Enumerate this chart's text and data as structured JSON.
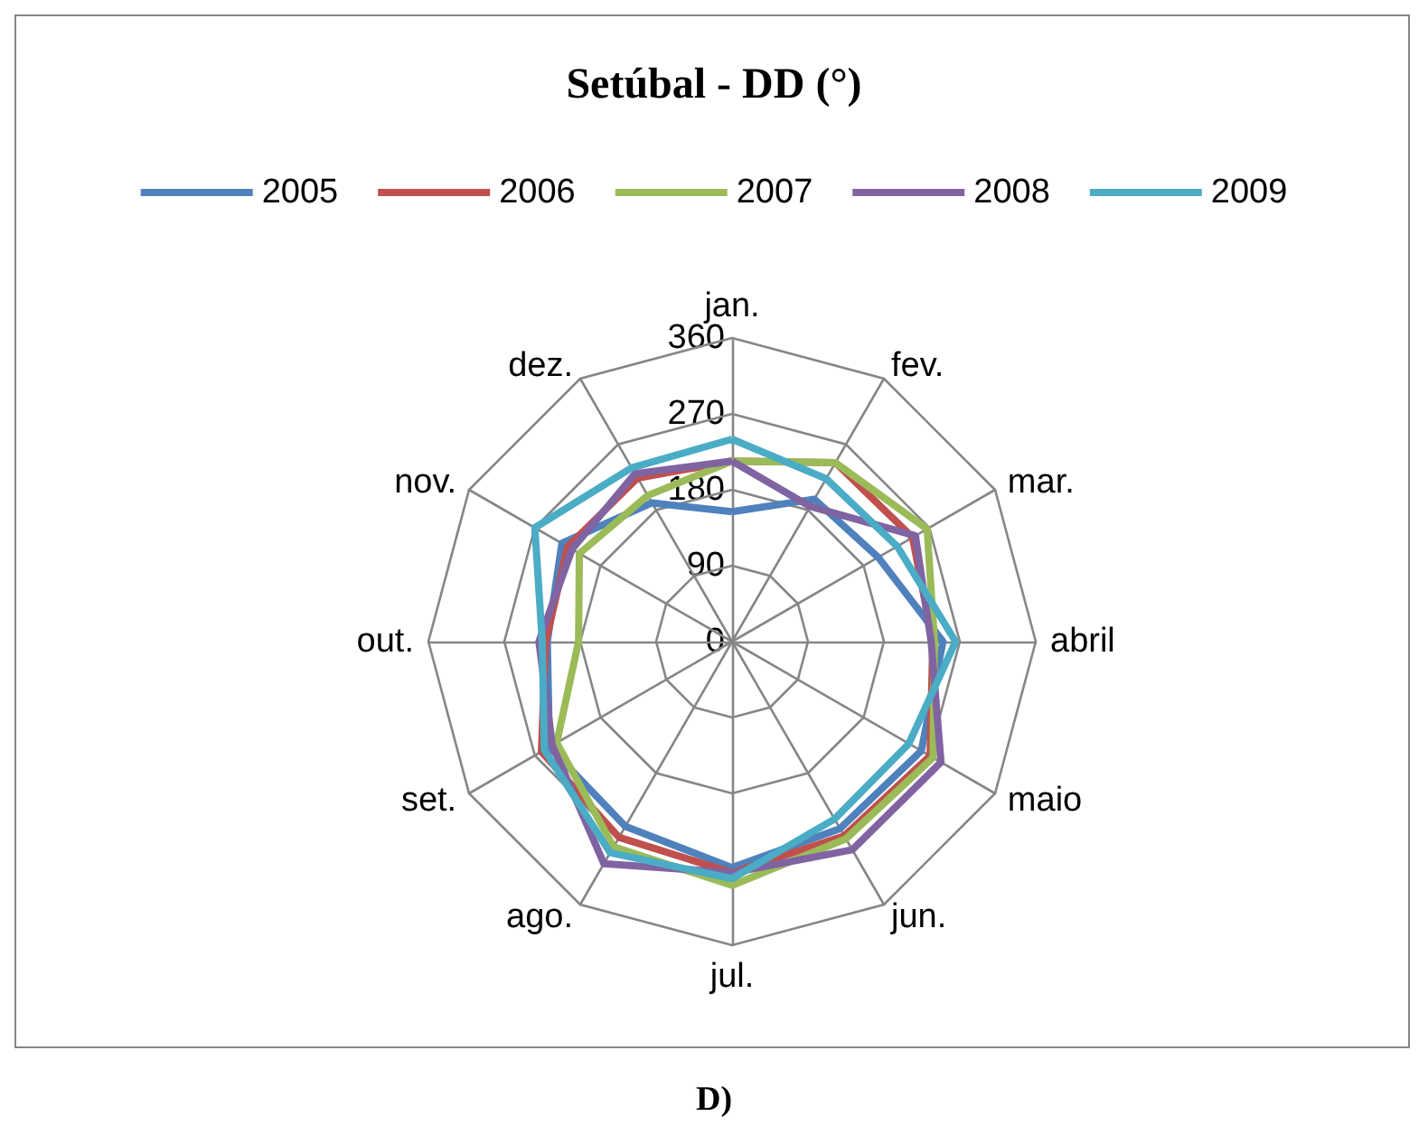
{
  "chart_data": {
    "type": "radar",
    "title": "Setúbal - DD (°)",
    "annotations": [
      "D)"
    ],
    "categories": [
      "jan.",
      "fev.",
      "mar.",
      "abril",
      "maio",
      "jun.",
      "jul.",
      "ago.",
      "set.",
      "out.",
      "nov.",
      "dez."
    ],
    "ylim": [
      0,
      360
    ],
    "yticks": [
      0,
      90,
      180,
      270,
      360
    ],
    "grid": true,
    "legend": "top",
    "marker": "none",
    "line_style": "solid",
    "series": [
      {
        "name": "2005",
        "color": "#4f81bd",
        "values": [
          154,
          195,
          200,
          250,
          259,
          256,
          268,
          253,
          250,
          219,
          233,
          190
        ]
      },
      {
        "name": "2006",
        "color": "#c0504d",
        "values": [
          214,
          245,
          247,
          238,
          271,
          266,
          274,
          268,
          261,
          221,
          225,
          224
        ]
      },
      {
        "name": "2007",
        "color": "#9bbb59",
        "values": [
          214,
          245,
          267,
          240,
          275,
          270,
          289,
          281,
          240,
          182,
          209,
          200
        ]
      },
      {
        "name": "2008",
        "color": "#8064a2",
        "values": [
          214,
          185,
          251,
          236,
          286,
          285,
          274,
          304,
          246,
          229,
          219,
          230
        ]
      },
      {
        "name": "2009",
        "color": "#4bacc6",
        "values": [
          240,
          223,
          226,
          265,
          242,
          243,
          281,
          289,
          257,
          225,
          270,
          238
        ]
      }
    ]
  }
}
